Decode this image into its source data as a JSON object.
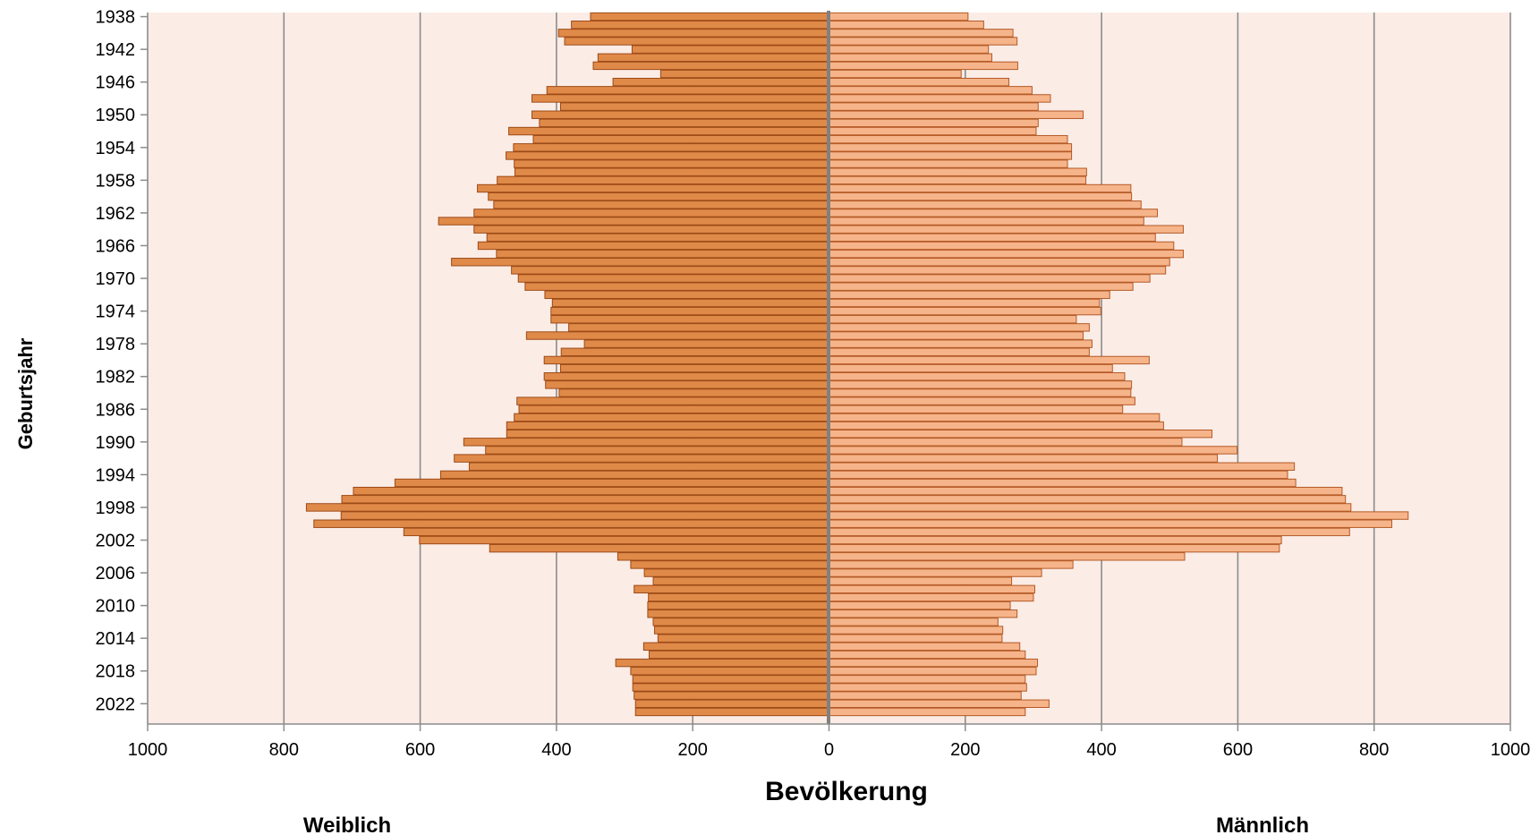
{
  "chart_data": {
    "type": "bar",
    "title": "",
    "xlabel": "Bevölkerung",
    "ylabel": "Geburtsjahr",
    "xlim": [
      -1000,
      1000
    ],
    "x_ticks": [
      -1000,
      -800,
      -600,
      -400,
      -200,
      0,
      200,
      400,
      600,
      800,
      1000
    ],
    "x_tick_labels": [
      "1000",
      "800",
      "600",
      "400",
      "200",
      "0",
      "200",
      "400",
      "600",
      "800",
      "1000"
    ],
    "y_tick_labels": [
      "1938",
      "1942",
      "1946",
      "1950",
      "1954",
      "1958",
      "1962",
      "1966",
      "1970",
      "1974",
      "1978",
      "1982",
      "1986",
      "1990",
      "1994",
      "1998",
      "2002",
      "2006",
      "2010",
      "2014",
      "2018",
      "2022"
    ],
    "grid": true,
    "side_labels": {
      "left": "Weiblich",
      "right": "Männlich"
    },
    "colors": {
      "plot_background": "#FBECE6",
      "female_fill": "#E08A4A",
      "female_stroke": "#9C4A16",
      "male_fill": "#F6B48A",
      "male_stroke": "#B45A26",
      "grid": "#8C8C8C",
      "center_axis": "#808080"
    },
    "categories": [
      1938,
      1939,
      1940,
      1941,
      1942,
      1943,
      1944,
      1945,
      1946,
      1947,
      1948,
      1949,
      1950,
      1951,
      1952,
      1953,
      1954,
      1955,
      1956,
      1957,
      1958,
      1959,
      1960,
      1961,
      1962,
      1963,
      1964,
      1965,
      1966,
      1967,
      1968,
      1969,
      1970,
      1971,
      1972,
      1973,
      1974,
      1975,
      1976,
      1977,
      1978,
      1979,
      1980,
      1981,
      1982,
      1983,
      1984,
      1985,
      1986,
      1987,
      1988,
      1989,
      1990,
      1991,
      1992,
      1993,
      1994,
      1995,
      1996,
      1997,
      1998,
      1999,
      2000,
      2001,
      2002,
      2003,
      2004,
      2005,
      2006,
      2007,
      2008,
      2009,
      2010,
      2011,
      2012,
      2013,
      2014,
      2015,
      2016,
      2017,
      2018,
      2019,
      2020,
      2021,
      2022,
      2023
    ],
    "series": [
      {
        "name": "Weiblich",
        "values": [
          350,
          378,
          397,
          388,
          289,
          339,
          346,
          247,
          317,
          414,
          436,
          394,
          436,
          425,
          470,
          434,
          463,
          474,
          462,
          461,
          487,
          516,
          500,
          492,
          521,
          573,
          521,
          502,
          515,
          488,
          554,
          466,
          456,
          446,
          417,
          406,
          408,
          408,
          382,
          444,
          359,
          393,
          418,
          394,
          418,
          416,
          396,
          458,
          455,
          462,
          473,
          473,
          536,
          504,
          550,
          528,
          570,
          637,
          698,
          715,
          767,
          716,
          756,
          624,
          601,
          498,
          310,
          291,
          271,
          258,
          286,
          265,
          266,
          266,
          258,
          256,
          251,
          272,
          264,
          313,
          291,
          288,
          288,
          286,
          284,
          284
        ]
      },
      {
        "name": "Männlich",
        "values": [
          204,
          227,
          270,
          276,
          234,
          239,
          277,
          194,
          264,
          298,
          325,
          307,
          373,
          307,
          304,
          350,
          356,
          356,
          350,
          378,
          377,
          443,
          444,
          458,
          482,
          462,
          520,
          479,
          506,
          520,
          500,
          494,
          471,
          446,
          412,
          397,
          399,
          363,
          382,
          373,
          386,
          382,
          470,
          416,
          434,
          444,
          443,
          449,
          431,
          485,
          491,
          562,
          518,
          599,
          570,
          683,
          673,
          685,
          753,
          758,
          766,
          850,
          826,
          764,
          664,
          661,
          522,
          358,
          312,
          268,
          302,
          300,
          266,
          276,
          248,
          255,
          254,
          280,
          288,
          306,
          304,
          288,
          290,
          282,
          323,
          288
        ]
      }
    ]
  }
}
